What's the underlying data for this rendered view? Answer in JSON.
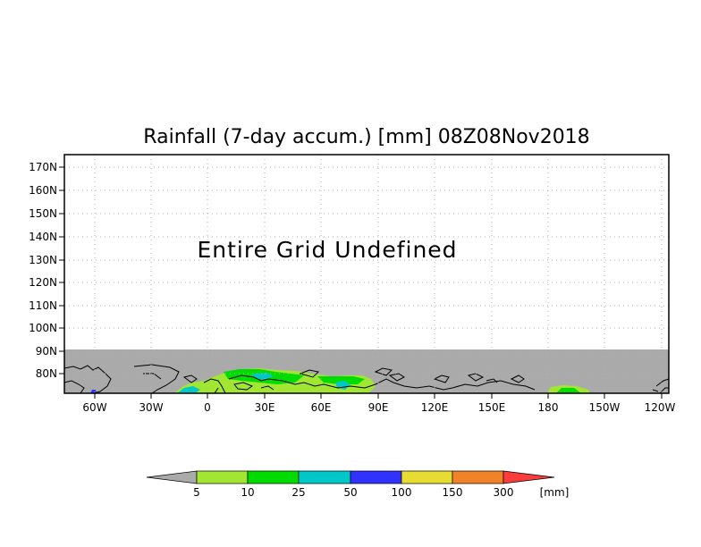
{
  "title": "Rainfall (7-day accum.) [mm] 08Z08Nov2018",
  "message": "Entire Grid Undefined",
  "lat_labels": [
    "170N",
    "160N",
    "150N",
    "140N",
    "130N",
    "120N",
    "110N",
    "100N",
    "90N",
    "80N"
  ],
  "lon_labels": [
    "60W",
    "30W",
    "0",
    "30E",
    "60E",
    "90E",
    "120E",
    "150E",
    "180",
    "150W",
    "120W"
  ],
  "colors": {
    "undefined_gray": "#aaaaaa",
    "land_outline": "#000000",
    "grid_dots": "#b0b0b0"
  },
  "colorbar": {
    "unit": "[mm]",
    "bins": [
      {
        "color": "#aaaaaa",
        "label": "5"
      },
      {
        "color": "#a0e632",
        "label": "10"
      },
      {
        "color": "#00dc00",
        "label": "25"
      },
      {
        "color": "#00c8c8",
        "label": "50"
      },
      {
        "color": "#3232ff",
        "label": "100"
      },
      {
        "color": "#e6dc32",
        "label": "150"
      },
      {
        "color": "#f08228",
        "label": "300"
      },
      {
        "color": "#fa3c3c",
        "label": ""
      }
    ]
  }
}
